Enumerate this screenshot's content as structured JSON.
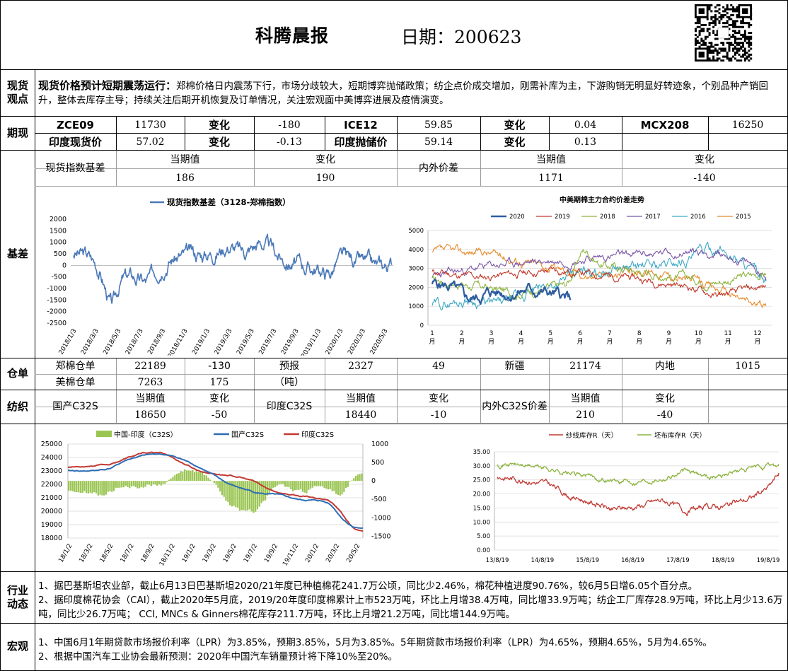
{
  "header": {
    "title": "科腾晨报",
    "date_label": "日期：200623"
  },
  "spot": {
    "label": "现货观点",
    "headline": "现货价格预计短期震荡运行：",
    "body": "郑棉价格日内震荡下行，市场分歧较大，短期博弈抛储政策；纺企点价成交增加，刚需补库为主，下游购销无明显好转迹象，个别品种产销回升，整体去库存主导；持续关注后期开机恢复及订单情况，关注宏观面中美博弈进展及疫情演变。"
  },
  "futures": {
    "label": "期现",
    "row1": [
      "ZCE09",
      "11730",
      "变化",
      "-180",
      "ICE12",
      "59.85",
      "变化",
      "0.04",
      "MCX208",
      "16250"
    ],
    "row2": [
      "印度现货价",
      "57.02",
      "变化",
      "-0.13",
      "印度抛储价",
      "59.14",
      "变化",
      "0.13"
    ]
  },
  "basis": {
    "label": "基差",
    "table": {
      "h1": "现货指数基差",
      "c1": "当期值",
      "c2": "变化",
      "v1": "186",
      "v2": "190",
      "h2": "内外价差",
      "c3": "当期值",
      "c4": "变化",
      "v3": "1171",
      "v4": "-140"
    },
    "chart1": {
      "legend": "现货指数基差（3128-郑棉指数）",
      "yticks": [
        "2000",
        "1500",
        "1000",
        "500",
        "0",
        "-500",
        "-1000",
        "-1500",
        "-2000",
        "-2500"
      ],
      "xticks": [
        "2018/1/3",
        "2018/3/3",
        "2018/5/3",
        "2018/7/3",
        "2018/9/3",
        "2018/11/3",
        "2019/1/3",
        "2019/3/3",
        "2019/5/3",
        "2019/7/3",
        "2019/9/3",
        "2019/11/3",
        "2020/1/3",
        "2020/3/3",
        "2020/5/3"
      ]
    },
    "chart2": {
      "title": "中美期棉主力合约价差走势",
      "legend": [
        "2020",
        "2019",
        "2018",
        "2017",
        "2016",
        "2015"
      ],
      "colors": [
        "#2e5d9f",
        "#c0392b",
        "#8cb33e",
        "#7b57a7",
        "#3fa9c4",
        "#e88b2e"
      ],
      "yticks": [
        "5000",
        "4000",
        "3000",
        "2000",
        "1000",
        "0"
      ],
      "xticks": [
        "1",
        "2",
        "3",
        "4",
        "5",
        "6",
        "7",
        "8",
        "9",
        "10",
        "11",
        "12"
      ],
      "xunit": "月"
    }
  },
  "warehouse": {
    "label": "仓单",
    "row1": [
      "郑棉仓单",
      "22189",
      "-130",
      "预报",
      "2327",
      "49",
      "新疆",
      "21174",
      "内地",
      "1015"
    ],
    "row2": [
      "美棉仓单",
      "7263",
      "175",
      "（吨）"
    ]
  },
  "textile": {
    "label": "纺织",
    "a": {
      "name": "国产C32S",
      "h1": "当期值",
      "h2": "变化",
      "v1": "18650",
      "v2": "-50"
    },
    "b": {
      "name": "印度C32S",
      "h1": "当期值",
      "h2": "变化",
      "v1": "18440",
      "v2": "-10"
    },
    "c": {
      "name": "内外C32S价差",
      "h1": "当期值",
      "h2": "变化",
      "v1": "210",
      "v2": "-40"
    },
    "chart3": {
      "legend": [
        "中国-印度（C32S）",
        "国产C32S",
        "印度C32S"
      ],
      "yticks": [
        "25000",
        "24000",
        "23000",
        "22000",
        "21000",
        "20000",
        "19000",
        "18000"
      ],
      "y2ticks": [
        "1000",
        "500",
        "0",
        "-500",
        "-1000",
        "-1500"
      ],
      "xticks": [
        "18/1/2",
        "18/3/2",
        "18/5/2",
        "18/7/2",
        "18/9/2",
        "18/11/2",
        "19/1/2",
        "19/3/2",
        "19/5/2",
        "19/7/2",
        "19/9/2",
        "19/11/2",
        "20/1/2",
        "20/3/2",
        "20/5/2"
      ]
    },
    "chart4": {
      "legend": [
        "纱线库存R（天）",
        "坯布库存R（天）"
      ],
      "yticks": [
        "35.00",
        "30.00",
        "25.00",
        "20.00",
        "15.00",
        "10.00",
        "5.00",
        "0.00"
      ],
      "xticks": [
        "13/8/19",
        "14/8/19",
        "15/8/19",
        "16/8/19",
        "17/8/19",
        "18/8/19",
        "19/8/19"
      ]
    }
  },
  "industry": {
    "label": "行业动态",
    "l1": "1、据巴基斯坦农业部，截止6月13日巴基斯坦2020/21年度已种植棉花241.7万公顷，同比少2.46%，棉花种植进度90.76%，较6月5日增6.05个百分点。",
    "l2": "2、据印度棉花协会（CAI），截止2020年5月底，2019/20年度印度棉累计上市523万吨，环比上月增38.4万吨，同比增33.9万吨；纺企工厂库存28.9万吨，环比上月少13.6万吨，同比少26.7万吨； CCI, MNCs & Ginners棉花库存211.7万吨，环比上月增21.2万吨，同比增144.9万吨。"
  },
  "macro": {
    "label": "宏观",
    "l1": "1、中国6月1年期贷款市场报价利率（LPR）为3.85%，预期3.85%，5月为3.85%。5年期贷款市场报价利率（LPR）为4.65%，预期4.65%，5月为4.65%。",
    "l2": "2、根据中国汽车工业协会最新预测：2020年中国汽车销量预计将下降10%至20%。"
  }
}
